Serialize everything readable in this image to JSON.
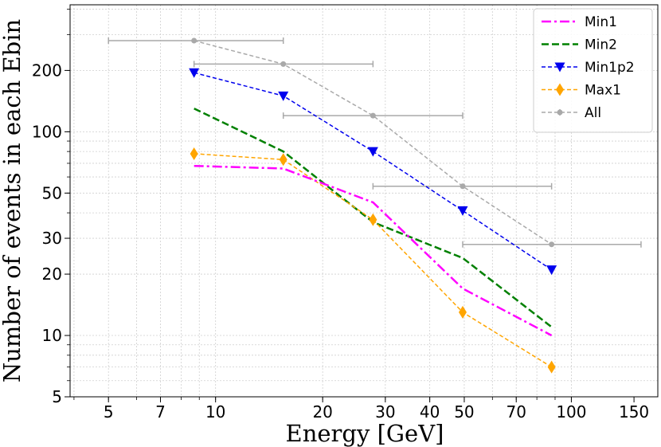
{
  "chart_data": {
    "type": "line",
    "xlabel": "Energy [GeV]",
    "ylabel": "Number of events in each Ebin",
    "xscale": "log",
    "yscale": "log",
    "xlim": [
      3.9,
      175
    ],
    "ylim": [
      5,
      420
    ],
    "grid": true,
    "legend_position": "top-right",
    "x_ticks": [
      {
        "value": 5,
        "label": "5"
      },
      {
        "value": 7,
        "label": "7"
      },
      {
        "value": 10,
        "label": "10"
      },
      {
        "value": 20,
        "label": "20"
      },
      {
        "value": 30,
        "label": "30"
      },
      {
        "value": 40,
        "label": "40"
      },
      {
        "value": 50,
        "label": "50"
      },
      {
        "value": 70,
        "label": "70"
      },
      {
        "value": 100,
        "label": "100"
      },
      {
        "value": 150,
        "label": "150"
      }
    ],
    "y_ticks": [
      {
        "value": 5,
        "label": "5"
      },
      {
        "value": 10,
        "label": "10"
      },
      {
        "value": 20,
        "label": "20"
      },
      {
        "value": 30,
        "label": "30"
      },
      {
        "value": 50,
        "label": "50"
      },
      {
        "value": 100,
        "label": "100"
      },
      {
        "value": 200,
        "label": "200"
      }
    ],
    "x": [
      8.7,
      15.5,
      27.7,
      49.5,
      88
    ],
    "series": [
      {
        "name": "Min1",
        "color": "#ff00ff",
        "style": "dashdot",
        "marker": "none",
        "width": 2.5,
        "values": [
          68,
          66,
          45,
          17,
          10
        ]
      },
      {
        "name": "Min2",
        "color": "#008000",
        "style": "dashed",
        "marker": "none",
        "width": 2.5,
        "values": [
          130,
          80,
          36,
          24,
          11
        ]
      },
      {
        "name": "Min1p2",
        "color": "#0000ee",
        "style": "dashed-fine",
        "marker": "triangle-down",
        "width": 1.5,
        "values": [
          195,
          150,
          80,
          41,
          21
        ]
      },
      {
        "name": "Max1",
        "color": "#ffa500",
        "style": "dashed-fine",
        "marker": "diamond",
        "width": 1.5,
        "values": [
          78,
          73,
          37,
          13,
          7
        ]
      },
      {
        "name": "All",
        "color": "#a9a9a9",
        "style": "dashed-fine",
        "marker": "circle",
        "width": 1.5,
        "values": [
          280,
          215,
          120,
          54,
          28
        ],
        "xerr_low": [
          5,
          8.7,
          15.5,
          27.7,
          49.5
        ],
        "xerr_high": [
          15.5,
          27.7,
          49.5,
          88,
          157
        ]
      }
    ]
  }
}
